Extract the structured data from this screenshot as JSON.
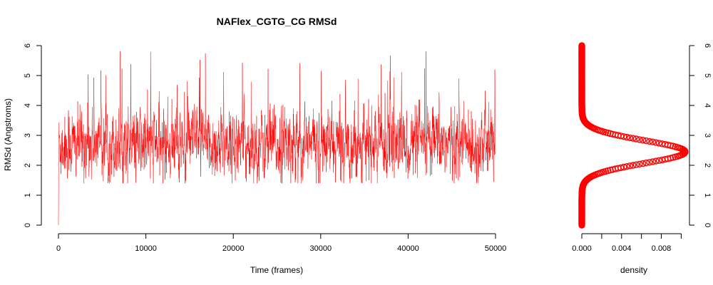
{
  "chart_data": [
    {
      "type": "line",
      "title": "NAFlex_CGTG_CG RMSd",
      "xlabel": "Time (frames)",
      "ylabel": "RMSd (Angstroms)",
      "xlim": [
        0,
        50000
      ],
      "ylim": [
        0,
        6
      ],
      "x_ticks": [
        "0",
        "10000",
        "20000",
        "30000",
        "40000",
        "50000"
      ],
      "y_ticks": [
        "0",
        "1",
        "2",
        "3",
        "4",
        "5",
        "6"
      ],
      "series": [
        {
          "color": "#ff0000",
          "summary": {
            "n_frames": 50000,
            "start_value": 0.0,
            "mean": 2.7,
            "typical_min": 1.7,
            "typical_max": 4.4,
            "peak_max": 5.9
          }
        }
      ]
    },
    {
      "type": "scatter",
      "title": "",
      "xlabel": "density",
      "ylabel": "",
      "xlim": [
        0,
        0.0104
      ],
      "ylim": [
        0,
        6
      ],
      "x_ticks": [
        "0.000",
        "0.004",
        "0.008"
      ],
      "y_ticks": [
        "0",
        "1",
        "2",
        "3",
        "4",
        "5",
        "6"
      ],
      "series": [
        {
          "color": "#ff0000",
          "distribution": {
            "shape": "gaussian",
            "mean": 2.45,
            "sd": 0.38,
            "peak_density": 0.0104
          }
        }
      ]
    }
  ]
}
